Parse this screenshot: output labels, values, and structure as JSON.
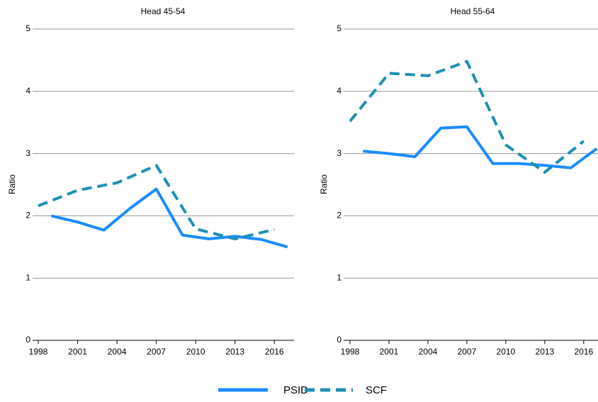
{
  "chart_data": [
    {
      "type": "line",
      "title": "Head 45-54",
      "ylabel": "Ratio",
      "xlim": [
        1998,
        2017.5
      ],
      "xticks": [
        1998,
        2001,
        2004,
        2007,
        2010,
        2013,
        2016
      ],
      "ylim": [
        0,
        5
      ],
      "yticks": [
        0,
        1,
        2,
        3,
        4,
        5
      ],
      "grid": true,
      "series": [
        {
          "name": "PSID",
          "color": "#1a8cff",
          "style": "solid",
          "x": [
            1999,
            2001,
            2003,
            2005,
            2007,
            2009,
            2011,
            2013,
            2015,
            2017
          ],
          "values": [
            2.0,
            1.9,
            1.77,
            2.12,
            2.43,
            1.69,
            1.63,
            1.67,
            1.62,
            1.5
          ]
        },
        {
          "name": "SCF",
          "color": "#1f8fb4",
          "style": "dashed",
          "x": [
            1998,
            2001,
            2004,
            2007,
            2010,
            2013,
            2016
          ],
          "values": [
            2.16,
            2.41,
            2.53,
            2.81,
            1.79,
            1.63,
            1.78
          ]
        }
      ]
    },
    {
      "type": "line",
      "title": "Head 55-64",
      "ylabel": "Ratio",
      "xlim": [
        1998,
        2017.1
      ],
      "xticks": [
        1998,
        2001,
        2004,
        2007,
        2010,
        2013,
        2016
      ],
      "ylim": [
        0,
        5
      ],
      "yticks": [
        0,
        1,
        2,
        3,
        4,
        5
      ],
      "grid": true,
      "series": [
        {
          "name": "PSID",
          "color": "#1a8cff",
          "style": "solid",
          "x": [
            1999,
            2001,
            2003,
            2005,
            2007,
            2009,
            2011,
            2013,
            2015,
            2017
          ],
          "values": [
            3.04,
            3.0,
            2.95,
            3.41,
            3.43,
            2.84,
            2.84,
            2.81,
            2.77,
            3.08
          ]
        },
        {
          "name": "SCF",
          "color": "#1f8fb4",
          "style": "dashed",
          "x": [
            1998,
            2001,
            2004,
            2007,
            2010,
            2013,
            2016
          ],
          "values": [
            3.52,
            4.29,
            4.25,
            4.48,
            3.14,
            2.7,
            3.2
          ]
        }
      ]
    }
  ]
}
